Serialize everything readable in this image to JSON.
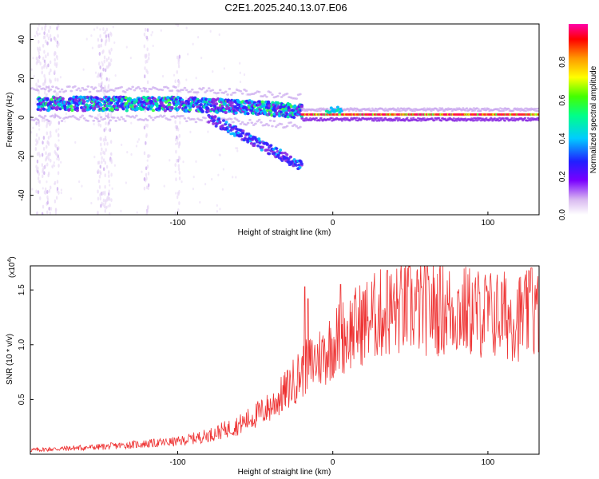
{
  "title": "C2E1.2025.240.13.07.E06",
  "chart_data": [
    {
      "type": "heatmap",
      "name": "spectrogram",
      "xlabel": "Height of straight line (km)",
      "ylabel": "Frequency (Hz)",
      "xlim": [
        -195,
        133
      ],
      "ylim": [
        -50,
        48
      ],
      "xticks": [
        -100,
        0,
        100
      ],
      "yticks": [
        -40,
        -20,
        0,
        20,
        40
      ],
      "colorbar": {
        "label": "Normalized spectral amplitude",
        "range": [
          0,
          1
        ],
        "ticks": [
          "0.0",
          "0.2",
          "0.4",
          "0.6",
          "0.8"
        ],
        "tick_values": [
          0,
          0.2,
          0.4,
          0.6,
          0.8
        ]
      },
      "features": [
        {
          "name": "main_band",
          "x_range": [
            -190,
            133
          ],
          "freq_center_hz": [
            7,
            7,
            5,
            3,
            2,
            2
          ],
          "freq_x_km": [
            -190,
            -100,
            -50,
            -20,
            0,
            133
          ]
        },
        {
          "name": "descending_branch",
          "x_range": [
            -80,
            -20
          ],
          "freq_start_hz": 0,
          "freq_end_hz": -25
        },
        {
          "name": "narrow_line",
          "x_range": [
            -20,
            133
          ],
          "freq_hz": 1.5
        }
      ]
    },
    {
      "type": "line",
      "name": "snr",
      "xlabel": "Height of straight line (km)",
      "ylabel": "SNR (10 * v/v)",
      "multiplier_label": "(x10",
      "multiplier_exp": "4",
      "xlim": [
        -195,
        133
      ],
      "ylim": [
        0,
        1.72
      ],
      "xticks": [
        -100,
        0,
        100
      ],
      "yticks": [
        0.5,
        1.0,
        1.5
      ],
      "ytick_labels": [
        "0.5",
        "1.0",
        "1.5"
      ],
      "color": "#ee3333",
      "envelope_x": [
        -195,
        -150,
        -100,
        -80,
        -60,
        -40,
        -30,
        -20,
        -10,
        -5,
        0,
        10,
        20,
        30,
        50,
        80,
        100,
        120,
        133
      ],
      "envelope_y": [
        0.04,
        0.07,
        0.12,
        0.18,
        0.28,
        0.45,
        0.6,
        0.78,
        0.9,
        0.95,
        1.05,
        1.15,
        1.25,
        1.32,
        1.38,
        1.36,
        1.32,
        1.3,
        1.32
      ],
      "peaks": [
        {
          "x": -18,
          "y": 1.53
        },
        {
          "x": -16,
          "y": 1.42
        },
        {
          "x": 5,
          "y": 1.55
        },
        {
          "x": 35,
          "y": 1.68
        },
        {
          "x": 128,
          "y": 1.7
        }
      ]
    }
  ]
}
